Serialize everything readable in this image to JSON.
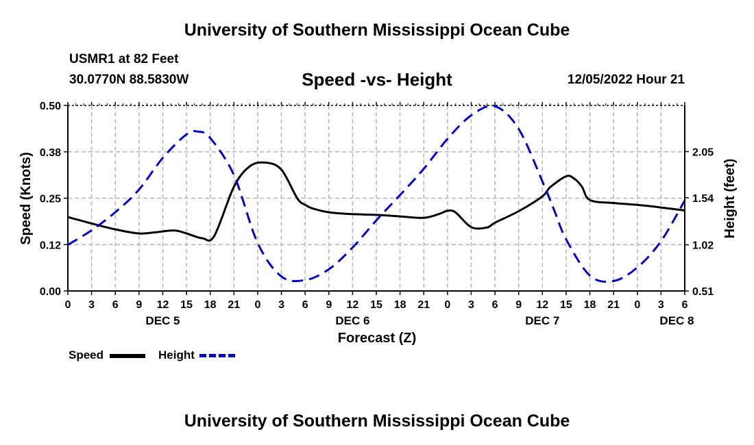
{
  "header": {
    "title": "University of Southern Mississippi Ocean Cube",
    "station": "USMR1 at 82 Feet",
    "coords": "30.0770N  88.5830W",
    "chart_title": "Speed -vs- Height",
    "timestamp": "12/05/2022 Hour 21"
  },
  "legend": {
    "speed_label": "Speed",
    "height_label": "Height"
  },
  "footer": {
    "title": "University of Southern Mississippi Ocean Cube"
  },
  "colors": {
    "speed": "#000000",
    "height": "#0000cc",
    "grid": "#b4b4b4"
  },
  "chart_data": {
    "type": "line",
    "title": "Speed -vs- Height",
    "xlabel": "Forecast (Z)",
    "ylabel": "Speed (Knots)",
    "ylabel_right": "Height (feet)",
    "x_range": [
      0,
      78
    ],
    "ylim": [
      0,
      0.5
    ],
    "ylim_right": [
      0.51,
      2.56
    ],
    "x_tick_values": [
      0,
      3,
      6,
      9,
      12,
      15,
      18,
      21,
      24,
      27,
      30,
      33,
      36,
      39,
      42,
      45,
      48,
      51,
      54,
      57,
      60,
      63,
      66,
      69,
      72,
      75,
      78
    ],
    "x_tick_labels": [
      "0",
      "3",
      "6",
      "9",
      "12",
      "15",
      "18",
      "21",
      "0",
      "3",
      "6",
      "9",
      "12",
      "15",
      "18",
      "21",
      "0",
      "3",
      "6",
      "9",
      "12",
      "15",
      "18",
      "21",
      "0",
      "3",
      "6"
    ],
    "day_labels": [
      {
        "x": 12,
        "label": "DEC 5"
      },
      {
        "x": 36,
        "label": "DEC 6"
      },
      {
        "x": 60,
        "label": "DEC 7"
      },
      {
        "x": 77,
        "label": "DEC 8"
      }
    ],
    "y_ticks": [
      {
        "value": 0.0,
        "label": "0.00"
      },
      {
        "value": 0.125,
        "label": "0.12"
      },
      {
        "value": 0.25,
        "label": "0.25"
      },
      {
        "value": 0.375,
        "label": "0.38"
      },
      {
        "value": 0.5,
        "label": "0.50"
      }
    ],
    "y_ticks_right": [
      {
        "value": 0.51,
        "label": "0.51"
      },
      {
        "value": 1.02,
        "label": "1.02"
      },
      {
        "value": 1.54,
        "label": "1.54"
      },
      {
        "value": 2.05,
        "label": "2.05"
      }
    ],
    "series": [
      {
        "name": "Speed",
        "axis": "left",
        "style": "solid",
        "x": [
          0,
          3,
          6,
          9,
          11,
          13.5,
          15,
          17,
          18.5,
          21,
          23,
          25,
          27,
          29,
          30,
          31,
          33,
          36,
          39,
          42,
          45,
          47,
          48,
          49,
          51,
          53,
          54,
          57,
          60,
          61,
          63,
          64,
          65,
          66,
          69,
          72,
          75,
          78
        ],
        "y": [
          0.199,
          0.182,
          0.166,
          0.155,
          0.158,
          0.163,
          0.155,
          0.142,
          0.148,
          0.281,
          0.336,
          0.346,
          0.327,
          0.25,
          0.232,
          0.222,
          0.212,
          0.207,
          0.205,
          0.201,
          0.197,
          0.208,
          0.216,
          0.212,
          0.172,
          0.171,
          0.184,
          0.215,
          0.255,
          0.28,
          0.309,
          0.303,
          0.281,
          0.245,
          0.237,
          0.232,
          0.225,
          0.217
        ]
      },
      {
        "name": "Height",
        "axis": "right",
        "style": "dashed",
        "x": [
          0,
          3,
          6,
          9,
          12,
          15,
          16.5,
          18,
          21,
          24,
          27,
          30,
          33,
          36,
          39,
          42,
          45,
          48,
          51,
          54,
          57,
          60,
          61.5,
          63,
          66,
          69,
          72,
          75,
          78
        ],
        "y": [
          1.02,
          1.18,
          1.38,
          1.63,
          1.98,
          2.24,
          2.27,
          2.2,
          1.79,
          1.04,
          0.67,
          0.63,
          0.75,
          0.99,
          1.29,
          1.57,
          1.86,
          2.19,
          2.45,
          2.55,
          2.3,
          1.72,
          1.4,
          1.08,
          0.68,
          0.62,
          0.77,
          1.06,
          1.51
        ]
      }
    ]
  }
}
